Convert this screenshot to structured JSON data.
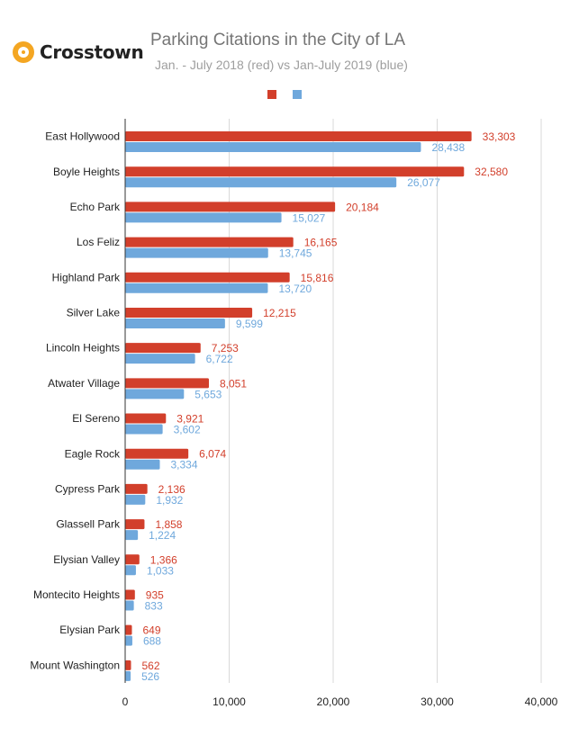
{
  "brand": {
    "name": "Crosstown"
  },
  "chart_data": {
    "type": "bar",
    "orientation": "horizontal",
    "title": "Parking Citations in the City of LA",
    "subtitle": "Jan. - July 2018 (red) vs Jan-July 2019 (blue)",
    "legend_position": "top",
    "categories": [
      "East Hollywood",
      "Boyle Heights",
      "Echo Park",
      "Los Feliz",
      "Highland Park",
      "Silver Lake",
      "Lincoln Heights",
      "Atwater Village",
      "El Sereno",
      "Eagle Rock",
      "Cypress Park",
      "Glassell Park",
      "Elysian Valley",
      "Montecito Heights",
      "Elysian Park",
      "Mount Washington"
    ],
    "series": [
      {
        "color": "#d23f2b",
        "values": [
          33303,
          32580,
          20184,
          16165,
          15816,
          12215,
          7253,
          8051,
          3921,
          6074,
          2136,
          1858,
          1366,
          935,
          649,
          562
        ]
      },
      {
        "color": "#6fa8dc",
        "values": [
          28438,
          26077,
          15027,
          13745,
          13720,
          9599,
          6722,
          5653,
          3602,
          3334,
          1932,
          1224,
          1033,
          833,
          688,
          526
        ]
      }
    ],
    "x_ticks": [
      0,
      10000,
      20000,
      30000,
      40000
    ],
    "xlim": [
      0,
      40000
    ],
    "grid": true,
    "data_labels": true
  }
}
